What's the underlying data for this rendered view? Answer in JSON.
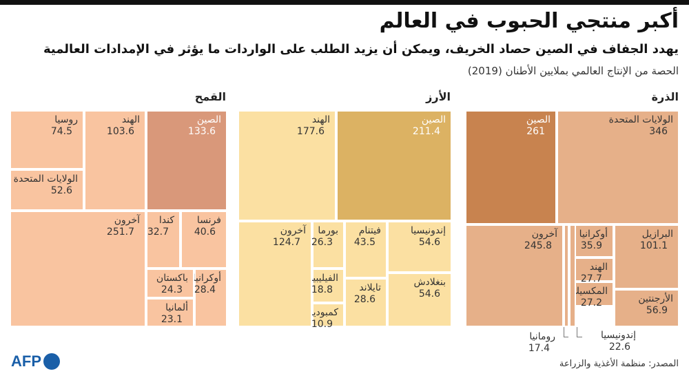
{
  "header": {
    "title": "أكبر منتجي الحبوب في العالم",
    "subtitle": "يهدد الجفاف في الصين حصاد الخريف، ويمكن أن يزيد الطلب على الواردات ما يؤثر في الإمدادات العالمية",
    "note": "الحصة من الإنتاج العالمي بملايين الأطنان (2019)"
  },
  "footer": {
    "source": "المصدر: منظمة الأغذية والزراعة",
    "logo_text": "AFP"
  },
  "colors": {
    "wheat": "#f9c4a0",
    "wheat_china": "#d9987a",
    "rice": "#fbe0a2",
    "rice_china": "#dcb263",
    "corn": "#e6b089",
    "corn_china": "#c8834f"
  },
  "chart_data": [
    {
      "type": "treemap",
      "title": "القمح",
      "unit": "مليون طن",
      "items": [
        {
          "name": "الصين",
          "value": 133.6
        },
        {
          "name": "الهند",
          "value": 103.6
        },
        {
          "name": "روسيا",
          "value": 74.5
        },
        {
          "name": "الولايات المتحدة",
          "value": 52.6
        },
        {
          "name": "فرنسا",
          "value": 40.6
        },
        {
          "name": "كندا",
          "value": 32.7
        },
        {
          "name": "أوكرانيا",
          "value": 28.4
        },
        {
          "name": "باكستان",
          "value": 24.3
        },
        {
          "name": "ألمانيا",
          "value": 23.1
        },
        {
          "name": "آخرون",
          "value": 251.7
        }
      ]
    },
    {
      "type": "treemap",
      "title": "الأرز",
      "unit": "مليون طن",
      "items": [
        {
          "name": "الصين",
          "value": 211.4
        },
        {
          "name": "الهند",
          "value": 177.6
        },
        {
          "name": "إندونيسيا",
          "value": 54.6
        },
        {
          "name": "بنغلادش",
          "value": 54.6
        },
        {
          "name": "فيتنام",
          "value": 43.5
        },
        {
          "name": "تايلاند",
          "value": 28.6
        },
        {
          "name": "بورما",
          "value": 26.3
        },
        {
          "name": "الفيليبين",
          "value": 18.8
        },
        {
          "name": "كمبوديا",
          "value": 10.9
        },
        {
          "name": "آخرون",
          "value": 124.7
        }
      ]
    },
    {
      "type": "treemap",
      "title": "الذرة",
      "unit": "مليون طن",
      "items": [
        {
          "name": "الولايات المتحدة",
          "value": 346
        },
        {
          "name": "الصين",
          "value": 261
        },
        {
          "name": "البرازيل",
          "value": 101.1
        },
        {
          "name": "الأرجنتين",
          "value": 56.9
        },
        {
          "name": "أوكرانيا",
          "value": 35.9
        },
        {
          "name": "الهند",
          "value": 27.7
        },
        {
          "name": "المكسيك",
          "value": 27.2
        },
        {
          "name": "إندونيسيا",
          "value": 22.6
        },
        {
          "name": "رومانيا",
          "value": 17.4
        },
        {
          "name": "آخرون",
          "value": 245.8
        }
      ]
    }
  ]
}
